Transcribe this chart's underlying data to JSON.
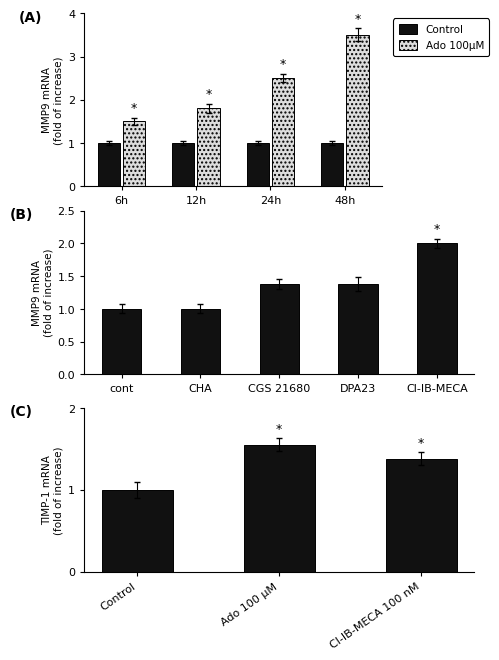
{
  "panel_A": {
    "categories": [
      "6h",
      "12h",
      "24h",
      "48h"
    ],
    "control_values": [
      1.0,
      1.0,
      1.0,
      1.0
    ],
    "control_errors": [
      0.05,
      0.05,
      0.05,
      0.05
    ],
    "ado_values": [
      1.5,
      1.8,
      2.5,
      3.5
    ],
    "ado_errors": [
      0.08,
      0.1,
      0.1,
      0.15
    ],
    "ylabel": "MMP9 mRNA\n(fold of increase)",
    "ylim": [
      0,
      4
    ],
    "yticks": [
      0,
      1,
      2,
      3,
      4
    ],
    "significance_ctrl": [
      false,
      false,
      false,
      false
    ],
    "significance_ado": [
      true,
      true,
      true,
      true
    ],
    "legend_labels": [
      "Control",
      "Ado 100μM"
    ]
  },
  "panel_B": {
    "categories": [
      "cont",
      "CHA",
      "CGS 21680",
      "DPA23",
      "Cl-IB-MECA"
    ],
    "values": [
      1.0,
      1.0,
      1.38,
      1.38,
      2.0
    ],
    "errors": [
      0.07,
      0.07,
      0.07,
      0.1,
      0.07
    ],
    "ylabel": "MMP9 mRNA\n(fold of increase)",
    "ylim": [
      0,
      2.5
    ],
    "yticks": [
      0.0,
      0.5,
      1.0,
      1.5,
      2.0,
      2.5
    ],
    "significance": [
      false,
      false,
      false,
      false,
      true
    ]
  },
  "panel_C": {
    "categories": [
      "Control",
      "Ado 100 μM",
      "Cl-IB-MECA 100 nM"
    ],
    "values": [
      1.0,
      1.55,
      1.38
    ],
    "errors": [
      0.1,
      0.08,
      0.08
    ],
    "ylabel": "TIMP-1 mRNA\n(fold of increase)",
    "ylim": [
      0,
      2
    ],
    "yticks": [
      0,
      1,
      2
    ],
    "significance": [
      false,
      true,
      true
    ]
  },
  "bar_color_solid": "#111111",
  "bar_color_dotted": "#dddddd",
  "background": "#ffffff",
  "label_A": "(A)",
  "label_B": "(B)",
  "label_C": "(C)"
}
